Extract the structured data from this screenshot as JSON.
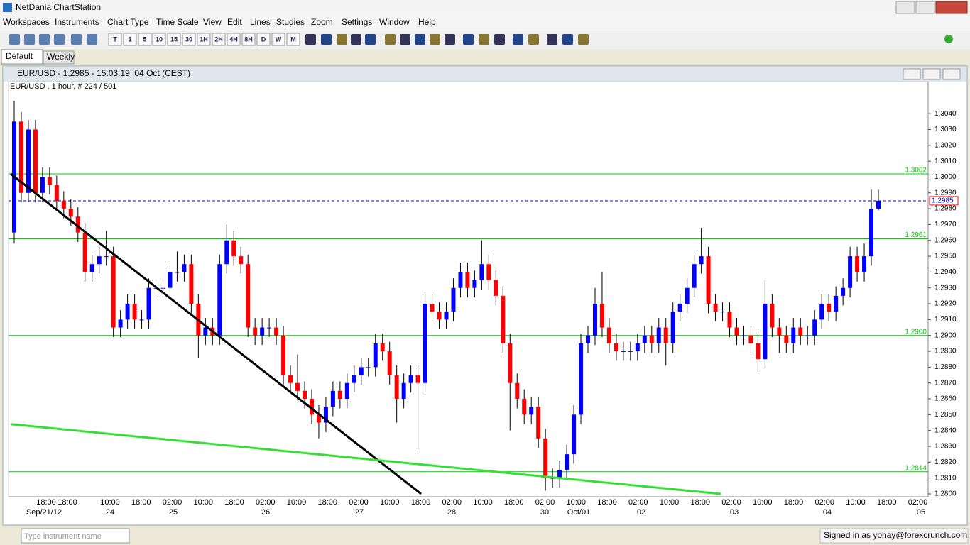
{
  "window": {
    "title": "NetDania ChartStation",
    "menu": [
      "Workspaces",
      "Instruments",
      "Chart Type",
      "Time Scale",
      "View",
      "Edit",
      "Lines",
      "Studies",
      "Zoom",
      "Settings",
      "Window",
      "Help"
    ],
    "toolbar_buttons": [
      "T",
      "1",
      "5",
      "10",
      "15",
      "30",
      "1H",
      "2H",
      "4H",
      "8H",
      "D",
      "W",
      "M"
    ],
    "tabs": [
      "Default",
      "Weekly"
    ],
    "chart_window_title": "EUR/USD - 1.2985 - 15:03:19  04 Oct (CEST)",
    "search_placeholder": "Type instrument name",
    "status": "Signed in as yohay@forexcrunch.com"
  },
  "chart_data": {
    "type": "candlestick",
    "title": "EUR/USD , 1 hour, # 224 / 501",
    "up_color": "#0000ff",
    "down_color": "#ff0000",
    "open": [
      1.2965,
      1.3035,
      1.299,
      1.303,
      1.299,
      1.3,
      1.2995,
      1.2985,
      1.298,
      1.2975,
      1.2965,
      1.294,
      1.2945,
      1.295,
      1.295,
      1.2905,
      1.291,
      1.292,
      1.291,
      1.291,
      1.293,
      1.293,
      1.293,
      1.294,
      1.294,
      1.2945,
      1.292,
      1.29,
      1.2905,
      1.29,
      1.2945,
      1.296,
      1.295,
      1.2945,
      1.2905,
      1.29,
      1.2905,
      1.2905,
      1.29,
      1.2875,
      1.287,
      1.2865,
      1.286,
      1.285,
      1.2845,
      1.2855,
      1.2865,
      1.286,
      1.287,
      1.2875,
      1.288,
      1.288,
      1.2895,
      1.289,
      1.2875,
      1.286,
      1.287,
      1.2875,
      1.287,
      1.292,
      1.2915,
      1.291,
      1.2915,
      1.293,
      1.294,
      1.293,
      1.2935,
      1.2945,
      1.2935,
      1.2925,
      1.2895,
      1.287,
      1.286,
      1.285,
      1.2855,
      1.2835,
      1.281,
      1.281,
      1.2815,
      1.2825,
      1.285,
      1.2895,
      1.29,
      1.292,
      1.2905,
      1.2895,
      1.289,
      1.289,
      1.289,
      1.2895,
      1.29,
      1.2895,
      1.2905,
      1.2895,
      1.2915,
      1.292,
      1.293,
      1.2945,
      1.295,
      1.292,
      1.2915,
      1.2915,
      1.2905,
      1.29,
      1.29,
      1.2895,
      1.2885,
      1.292,
      1.2905,
      1.29,
      1.2895,
      1.2905,
      1.29,
      1.29,
      1.291,
      1.292,
      1.2915,
      1.2925,
      1.293,
      1.295,
      1.294,
      1.295,
      1.298
    ],
    "high": [
      1.3048,
      1.3041,
      1.3036,
      1.3036,
      1.3006,
      1.3006,
      1.3001,
      1.2991,
      1.2986,
      1.2981,
      1.2971,
      1.2951,
      1.2956,
      1.2966,
      1.2956,
      1.2916,
      1.2926,
      1.2926,
      1.2916,
      1.2936,
      1.2936,
      1.2936,
      1.2946,
      1.2953,
      1.2951,
      1.2951,
      1.2926,
      1.2911,
      1.2911,
      1.2951,
      1.297,
      1.2966,
      1.2956,
      1.2951,
      1.2911,
      1.2911,
      1.2911,
      1.2911,
      1.2906,
      1.2881,
      1.2888,
      1.2871,
      1.2866,
      1.2856,
      1.2861,
      1.2871,
      1.2871,
      1.2876,
      1.2881,
      1.2886,
      1.2886,
      1.2901,
      1.2901,
      1.2896,
      1.2881,
      1.2876,
      1.2881,
      1.2881,
      1.2926,
      1.2926,
      1.2921,
      1.2921,
      1.2936,
      1.2946,
      1.2946,
      1.2941,
      1.296,
      1.2951,
      1.2941,
      1.2931,
      1.2901,
      1.2876,
      1.2866,
      1.2861,
      1.2861,
      1.2841,
      1.2816,
      1.2821,
      1.2831,
      1.2856,
      1.2901,
      1.2906,
      1.293,
      1.294,
      1.2911,
      1.2901,
      1.2896,
      1.2896,
      1.2901,
      1.2906,
      1.2906,
      1.2911,
      1.2911,
      1.2921,
      1.2926,
      1.2936,
      1.2951,
      1.2968,
      1.2956,
      1.2926,
      1.2921,
      1.2921,
      1.2911,
      1.2906,
      1.2906,
      1.2901,
      1.2935,
      1.2926,
      1.2911,
      1.2906,
      1.2911,
      1.2911,
      1.2906,
      1.2916,
      1.2926,
      1.2926,
      1.2931,
      1.2936,
      1.2956,
      1.2956,
      1.2958,
      1.2992,
      1.2992
    ],
    "low": [
      1.2958,
      1.2984,
      1.2984,
      1.2984,
      1.2984,
      1.2989,
      1.2979,
      1.2974,
      1.2969,
      1.2959,
      1.2934,
      1.2934,
      1.2939,
      1.2944,
      1.2899,
      1.2899,
      1.2904,
      1.2904,
      1.2904,
      1.2904,
      1.2924,
      1.2924,
      1.2924,
      1.2934,
      1.2934,
      1.2914,
      1.2886,
      1.2894,
      1.2894,
      1.2894,
      1.2939,
      1.2944,
      1.2939,
      1.2899,
      1.2894,
      1.2894,
      1.2899,
      1.2894,
      1.2869,
      1.2864,
      1.2859,
      1.2854,
      1.2844,
      1.2835,
      1.2839,
      1.2849,
      1.2854,
      1.2854,
      1.2864,
      1.2869,
      1.2874,
      1.2874,
      1.2884,
      1.2869,
      1.2845,
      1.2854,
      1.2864,
      1.2828,
      1.2864,
      1.2909,
      1.2904,
      1.2904,
      1.2909,
      1.2924,
      1.2924,
      1.2924,
      1.2929,
      1.2929,
      1.2919,
      1.2889,
      1.284,
      1.2854,
      1.2844,
      1.2844,
      1.2829,
      1.2802,
      1.2804,
      1.2804,
      1.2809,
      1.2819,
      1.2844,
      1.2889,
      1.2894,
      1.2899,
      1.2889,
      1.2884,
      1.2884,
      1.2884,
      1.2884,
      1.2889,
      1.2889,
      1.2889,
      1.2881,
      1.2889,
      1.2909,
      1.2914,
      1.2924,
      1.2939,
      1.2914,
      1.2909,
      1.2909,
      1.2899,
      1.2894,
      1.2894,
      1.2889,
      1.2877,
      1.2879,
      1.2899,
      1.2889,
      1.2889,
      1.2889,
      1.2894,
      1.2894,
      1.2894,
      1.2904,
      1.2909,
      1.2909,
      1.2919,
      1.2924,
      1.2934,
      1.2934,
      1.2944,
      1.2979
    ],
    "close": [
      1.3035,
      1.299,
      1.303,
      1.299,
      1.3,
      1.2995,
      1.2985,
      1.298,
      1.2975,
      1.2965,
      1.294,
      1.2945,
      1.295,
      1.295,
      1.2905,
      1.291,
      1.292,
      1.291,
      1.291,
      1.293,
      1.293,
      1.293,
      1.294,
      1.294,
      1.2945,
      1.292,
      1.29,
      1.2905,
      1.29,
      1.2945,
      1.296,
      1.295,
      1.2945,
      1.2905,
      1.29,
      1.2905,
      1.2905,
      1.29,
      1.2875,
      1.287,
      1.2865,
      1.286,
      1.285,
      1.2845,
      1.2855,
      1.2865,
      1.286,
      1.287,
      1.2875,
      1.288,
      1.288,
      1.2895,
      1.289,
      1.2875,
      1.286,
      1.287,
      1.2875,
      1.287,
      1.292,
      1.2915,
      1.291,
      1.2915,
      1.293,
      1.294,
      1.293,
      1.2935,
      1.2945,
      1.2935,
      1.2925,
      1.2895,
      1.287,
      1.286,
      1.285,
      1.2855,
      1.2835,
      1.281,
      1.281,
      1.2815,
      1.2825,
      1.285,
      1.2895,
      1.29,
      1.292,
      1.2905,
      1.2895,
      1.289,
      1.289,
      1.289,
      1.2895,
      1.29,
      1.2895,
      1.2905,
      1.2895,
      1.2915,
      1.292,
      1.293,
      1.2945,
      1.295,
      1.292,
      1.2915,
      1.2915,
      1.2905,
      1.29,
      1.29,
      1.2895,
      1.2885,
      1.292,
      1.2905,
      1.29,
      1.2895,
      1.2905,
      1.29,
      1.29,
      1.291,
      1.292,
      1.2915,
      1.2925,
      1.293,
      1.295,
      1.294,
      1.295,
      1.298,
      1.2985
    ],
    "ylim": [
      1.27982,
      1.30535
    ],
    "yticks": [
      {
        "value": 1.304,
        "label": "1.3040"
      },
      {
        "value": 1.303,
        "label": "1.3030"
      },
      {
        "value": 1.302,
        "label": "1.3020"
      },
      {
        "value": 1.301,
        "label": "1.3010"
      },
      {
        "value": 1.3,
        "label": "1.3000"
      },
      {
        "value": 1.299,
        "label": "1.2990"
      },
      {
        "value": 1.298,
        "label": "1.2980"
      },
      {
        "value": 1.297,
        "label": "1.2970"
      },
      {
        "value": 1.296,
        "label": "1.2960"
      },
      {
        "value": 1.295,
        "label": "1.2950"
      },
      {
        "value": 1.294,
        "label": "1.2940"
      },
      {
        "value": 1.293,
        "label": "1.2930"
      },
      {
        "value": 1.292,
        "label": "1.2920"
      },
      {
        "value": 1.291,
        "label": "1.2910"
      },
      {
        "value": 1.29,
        "label": "1.2900"
      },
      {
        "value": 1.289,
        "label": "1.2890"
      },
      {
        "value": 1.288,
        "label": "1.2880"
      },
      {
        "value": 1.287,
        "label": "1.2870"
      },
      {
        "value": 1.286,
        "label": "1.2860"
      },
      {
        "value": 1.285,
        "label": "1.2850"
      },
      {
        "value": 1.284,
        "label": "1.2840"
      },
      {
        "value": 1.283,
        "label": "1.2830"
      },
      {
        "value": 1.282,
        "label": "1.2820"
      },
      {
        "value": 1.281,
        "label": "1.2810"
      },
      {
        "value": 1.28,
        "label": "1.2800"
      }
    ],
    "time_labels": [
      "18:00",
      "18:00",
      "10:00",
      "18:00",
      "02:00",
      "10:00",
      "18:00",
      "02:00",
      "10:00",
      "18:00",
      "02:00",
      "10:00",
      "18:00",
      "02:00",
      "10:00",
      "18:00",
      "02:00",
      "10:00",
      "18:00",
      "02:00",
      "10:00",
      "18:00",
      "02:00",
      "10:00",
      "18:00",
      "02:00",
      "10:00",
      "18:00",
      "02:00"
    ],
    "date_labels": [
      "Sep/21/12",
      "24",
      "25",
      "26",
      "27",
      "28",
      "30",
      "Oct/01",
      "02",
      "03",
      "04",
      "05"
    ],
    "levels": [
      {
        "value": 1.3002,
        "label": "1.3002"
      },
      {
        "value": 1.2961,
        "label": "1.2961"
      },
      {
        "value": 1.29,
        "label": "1.2900"
      },
      {
        "value": 1.2814,
        "label": "1.2814"
      }
    ],
    "level_color": "#00cc00",
    "last_price": {
      "value": 1.2985,
      "label": "1.2985"
    },
    "last_price_color": "#0000cc",
    "trendlines": [
      {
        "color": "#000000",
        "values": [
          1.3002,
          1.28
        ]
      },
      {
        "color": "#33e033",
        "values": [
          1.2844,
          1.28
        ]
      }
    ]
  }
}
